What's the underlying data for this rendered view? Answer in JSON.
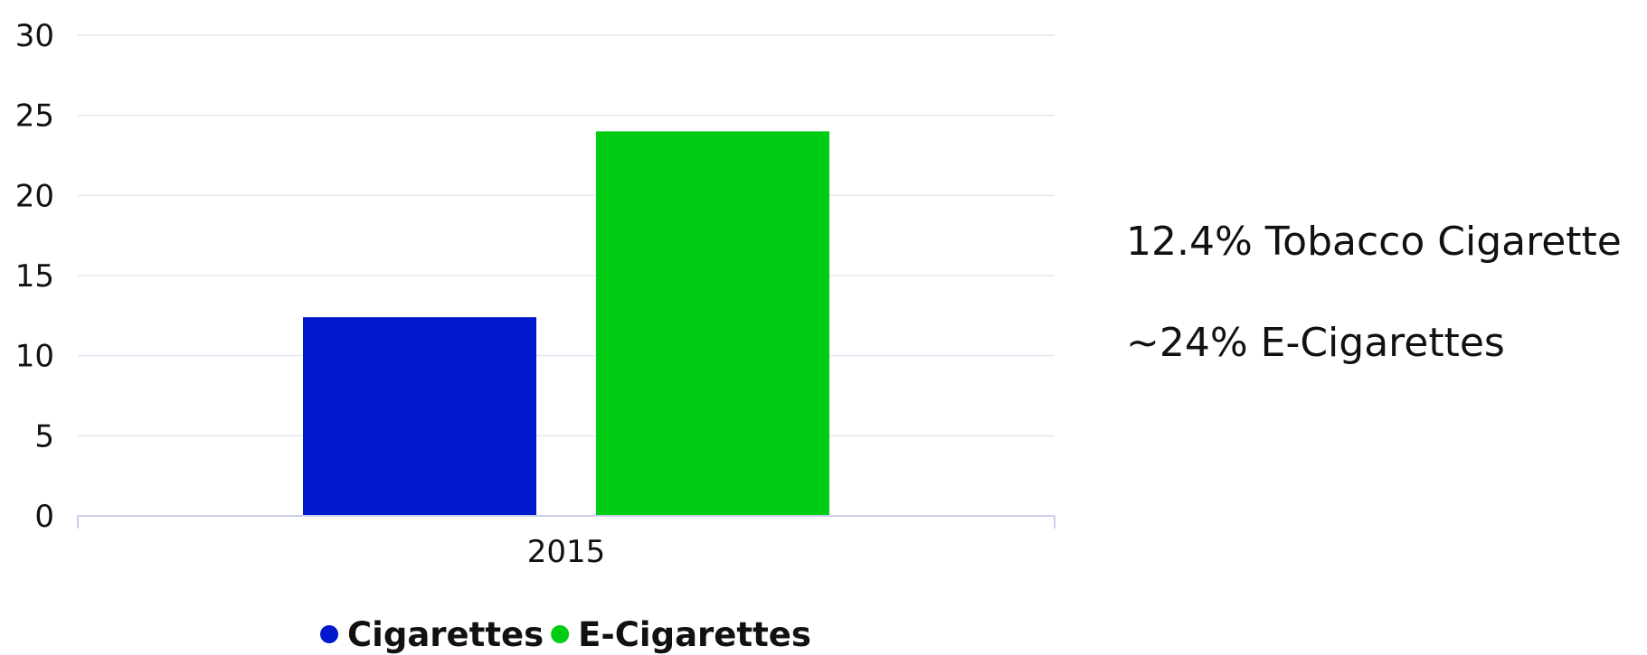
{
  "chart_data": {
    "type": "bar",
    "categories": [
      "2015"
    ],
    "series": [
      {
        "name": "Cigarettes",
        "values": [
          12.4
        ],
        "color": "#0019cc"
      },
      {
        "name": "E-Cigarettes",
        "values": [
          24
        ],
        "color": "#00cc13"
      }
    ],
    "ylim": [
      0,
      30
    ],
    "yticks": [
      0,
      5,
      10,
      15,
      20,
      25,
      30
    ],
    "ytick_labels": [
      "0",
      "5",
      "10",
      "15",
      "20",
      "25",
      "30"
    ],
    "grid": true,
    "legend": "bottom-center",
    "title": "",
    "xlabel": "",
    "ylabel": ""
  },
  "annotations": [
    "12.4% Tobacco Cigarette",
    "~24% E-Cigarettes"
  ],
  "colors": {
    "gridline": "#e3e6f2",
    "axis": "#c9cdea"
  }
}
